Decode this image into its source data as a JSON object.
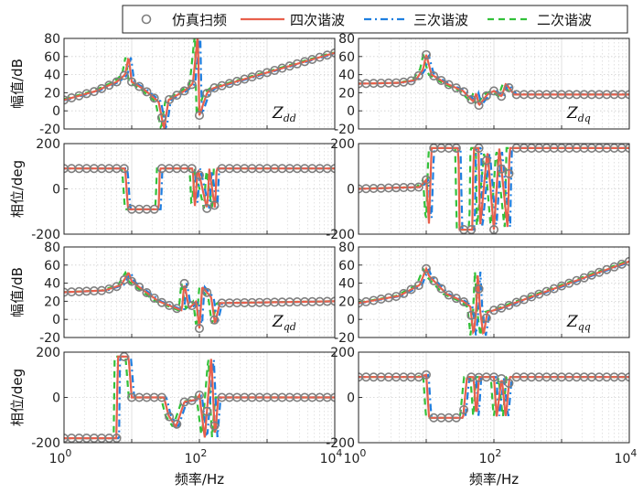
{
  "chart_data": {
    "type": "line",
    "legend": {
      "position": "top-right",
      "entries": [
        {
          "name": "仿真扫频",
          "style": "markers",
          "color": "#7f7f7f"
        },
        {
          "name": "四次谐波",
          "style": "solid",
          "color": "#e8604c"
        },
        {
          "name": "三次谐波",
          "style": "dashdot",
          "color": "#1f7fe0"
        },
        {
          "name": "二次谐波",
          "style": "dashed",
          "color": "#33c13a"
        }
      ]
    },
    "xaxis": {
      "label": "频率/Hz",
      "scale": "log",
      "range": [
        1,
        10000
      ],
      "tick_labels": [
        "10^0",
        "10^2",
        "10^4"
      ]
    },
    "panels": [
      {
        "id": "Zdd",
        "sym": "Z",
        "sub": "dd",
        "quantity": "mag",
        "ylabel": "幅值/dB",
        "ylim": [
          -20,
          80
        ],
        "yticks": [
          "80",
          "60",
          "40",
          "20",
          "0",
          "-20"
        ],
        "base": [
          [
            1,
            12
          ],
          [
            3,
            22
          ],
          [
            6,
            32
          ],
          [
            8,
            40
          ],
          [
            9,
            60
          ],
          [
            10,
            32
          ],
          [
            15,
            24
          ],
          [
            25,
            10
          ],
          [
            30,
            -20
          ],
          [
            35,
            12
          ],
          [
            60,
            22
          ],
          [
            80,
            30
          ],
          [
            95,
            85
          ],
          [
            100,
            -5
          ],
          [
            130,
            20
          ],
          [
            160,
            25
          ],
          [
            10000,
            64
          ]
        ]
      },
      {
        "id": "Zdq",
        "sym": "Z",
        "sub": "dq",
        "quantity": "mag",
        "ylabel": "",
        "ylim": [
          -20,
          80
        ],
        "yticks": [
          "80",
          "60",
          "40",
          "20",
          "0",
          "-20"
        ],
        "base": [
          [
            1,
            30
          ],
          [
            4,
            31
          ],
          [
            7,
            34
          ],
          [
            9,
            46
          ],
          [
            10,
            62
          ],
          [
            12,
            40
          ],
          [
            20,
            30
          ],
          [
            35,
            22
          ],
          [
            50,
            10
          ],
          [
            55,
            20
          ],
          [
            60,
            6
          ],
          [
            80,
            18
          ],
          [
            100,
            22
          ],
          [
            130,
            16
          ],
          [
            150,
            30
          ],
          [
            200,
            18
          ],
          [
            10000,
            18
          ]
        ]
      },
      {
        "id": "Zdd_ph",
        "quantity": "phase",
        "ylabel": "相位/deg",
        "ylim": [
          -200,
          200
        ],
        "yticks": [
          "200",
          "0",
          "-200"
        ],
        "base": [
          [
            1,
            90
          ],
          [
            8,
            90
          ],
          [
            8.8,
            -90
          ],
          [
            25,
            -90
          ],
          [
            26,
            90
          ],
          [
            80,
            90
          ],
          [
            85,
            -90
          ],
          [
            95,
            90
          ],
          [
            130,
            -90
          ],
          [
            140,
            90
          ],
          [
            170,
            -90
          ],
          [
            180,
            90
          ],
          [
            10000,
            90
          ]
        ]
      },
      {
        "id": "Zdq_ph",
        "quantity": "phase",
        "ylabel": "",
        "ylim": [
          -200,
          200
        ],
        "yticks": [
          "200",
          "0",
          "-200"
        ],
        "base": [
          [
            1,
            0
          ],
          [
            8,
            8
          ],
          [
            10,
            40
          ],
          [
            11,
            -160
          ],
          [
            12,
            180
          ],
          [
            30,
            180
          ],
          [
            31,
            -180
          ],
          [
            48,
            -180
          ],
          [
            50,
            180
          ],
          [
            60,
            180
          ],
          [
            62,
            -180
          ],
          [
            80,
            170
          ],
          [
            100,
            -180
          ],
          [
            120,
            180
          ],
          [
            160,
            -180
          ],
          [
            170,
            180
          ],
          [
            10000,
            180
          ]
        ]
      },
      {
        "id": "Zqd",
        "sym": "Z",
        "sub": "qd",
        "quantity": "mag",
        "ylabel": "幅值/dB",
        "ylim": [
          -20,
          80
        ],
        "yticks": [
          "80",
          "60",
          "40",
          "20",
          "0",
          "-20"
        ],
        "base": [
          [
            1,
            30
          ],
          [
            4,
            32
          ],
          [
            7,
            38
          ],
          [
            9,
            52
          ],
          [
            10,
            42
          ],
          [
            15,
            32
          ],
          [
            25,
            20
          ],
          [
            40,
            14
          ],
          [
            55,
            10
          ],
          [
            60,
            40
          ],
          [
            70,
            12
          ],
          [
            90,
            20
          ],
          [
            100,
            -10
          ],
          [
            110,
            36
          ],
          [
            150,
            24
          ],
          [
            170,
            -5
          ],
          [
            200,
            18
          ],
          [
            10000,
            20
          ]
        ]
      },
      {
        "id": "Zqq",
        "sym": "Z",
        "sub": "qq",
        "quantity": "mag",
        "ylabel": "",
        "ylim": [
          -20,
          80
        ],
        "yticks": [
          "80",
          "60",
          "40",
          "20",
          "0",
          "-20"
        ],
        "base": [
          [
            1,
            18
          ],
          [
            4,
            26
          ],
          [
            8,
            38
          ],
          [
            10,
            56
          ],
          [
            11,
            48
          ],
          [
            20,
            28
          ],
          [
            35,
            20
          ],
          [
            45,
            14
          ],
          [
            50,
            -18
          ],
          [
            55,
            12
          ],
          [
            58,
            55
          ],
          [
            62,
            12
          ],
          [
            70,
            -18
          ],
          [
            80,
            8
          ],
          [
            150,
            14
          ],
          [
            200,
            18
          ],
          [
            10000,
            64
          ]
        ]
      },
      {
        "id": "Zqd_ph",
        "quantity": "phase",
        "ylabel": "相位/deg",
        "ylim": [
          -200,
          200
        ],
        "yticks": [
          "200",
          "0",
          "-200"
        ],
        "base": [
          [
            1,
            -180
          ],
          [
            6,
            -180
          ],
          [
            6.2,
            180
          ],
          [
            9,
            180
          ],
          [
            10,
            0
          ],
          [
            30,
            0
          ],
          [
            35,
            -80
          ],
          [
            45,
            -130
          ],
          [
            50,
            -90
          ],
          [
            60,
            -20
          ],
          [
            90,
            -10
          ],
          [
            100,
            10
          ],
          [
            120,
            -180
          ],
          [
            150,
            180
          ],
          [
            170,
            -180
          ],
          [
            190,
            0
          ],
          [
            10000,
            0
          ]
        ]
      },
      {
        "id": "Zqq_ph",
        "quantity": "phase",
        "ylabel": "",
        "ylim": [
          -200,
          200
        ],
        "yticks": [
          "200",
          "0",
          "-200"
        ],
        "base": [
          [
            1,
            90
          ],
          [
            8,
            90
          ],
          [
            10,
            100
          ],
          [
            11,
            -90
          ],
          [
            35,
            -90
          ],
          [
            40,
            90
          ],
          [
            50,
            90
          ],
          [
            55,
            -90
          ],
          [
            60,
            90
          ],
          [
            100,
            90
          ],
          [
            110,
            -90
          ],
          [
            130,
            90
          ],
          [
            150,
            -90
          ],
          [
            170,
            90
          ],
          [
            10000,
            90
          ]
        ]
      }
    ]
  }
}
